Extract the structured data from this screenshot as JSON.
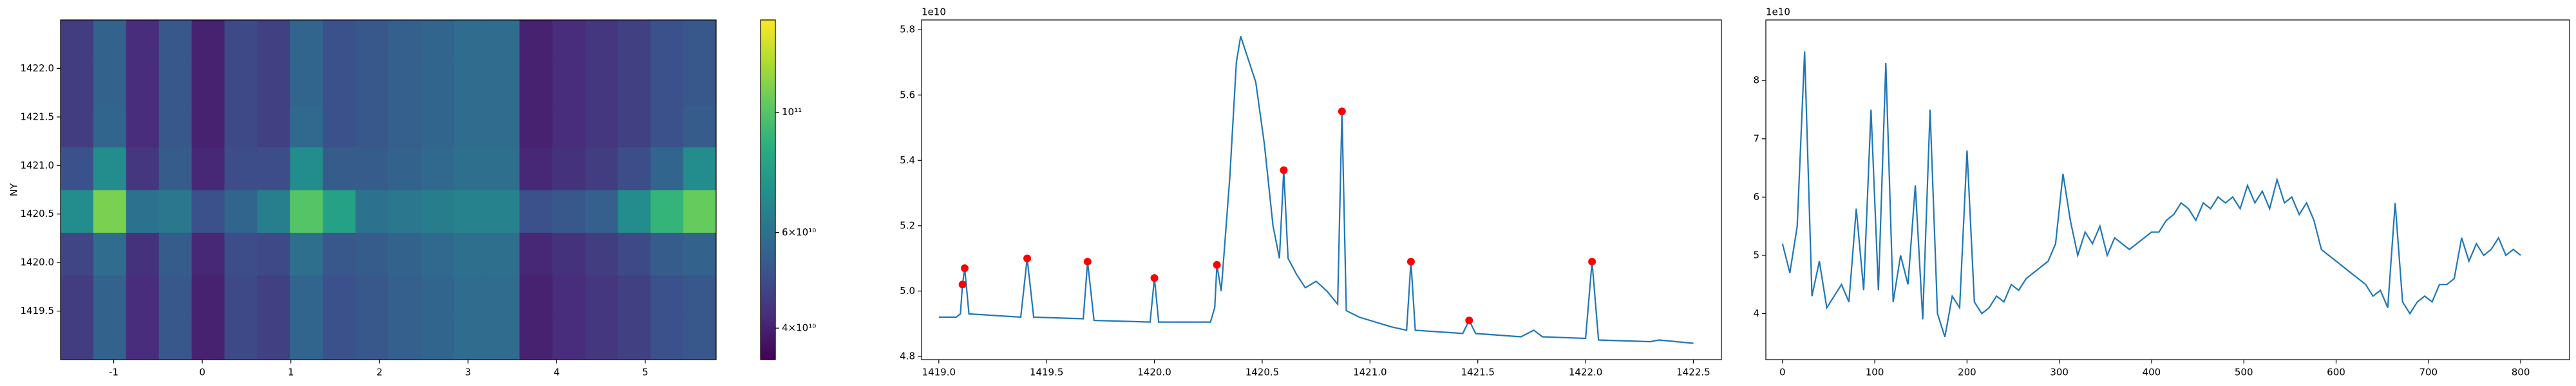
{
  "chart_data": [
    {
      "type": "heatmap",
      "ylabel": "NY",
      "colormap": "viridis",
      "log_color": true,
      "x": [
        -1.415,
        -1.045,
        -0.675,
        -0.305,
        0.065,
        0.435,
        0.805,
        1.175,
        1.545,
        1.915,
        2.285,
        2.655,
        3.025,
        3.395,
        3.765,
        4.135,
        4.505,
        4.875,
        5.245,
        5.615
      ],
      "y": [
        1419.22,
        1419.66,
        1420.09,
        1420.53,
        1420.97,
        1421.41,
        1421.84,
        1422.28
      ],
      "values": [
        [
          45000000000.0,
          55000000000.0,
          42000000000.0,
          52000000000.0,
          40000000000.0,
          48000000000.0,
          46000000000.0,
          56000000000.0,
          50000000000.0,
          52000000000.0,
          54000000000.0,
          56000000000.0,
          58000000000.0,
          58000000000.0,
          40000000000.0,
          42000000000.0,
          44000000000.0,
          46000000000.0,
          50000000000.0,
          52000000000.0
        ],
        [
          45000000000.0,
          55000000000.0,
          42000000000.0,
          52000000000.0,
          40000000000.0,
          48000000000.0,
          46000000000.0,
          56000000000.0,
          50000000000.0,
          52000000000.0,
          54000000000.0,
          56000000000.0,
          58000000000.0,
          58000000000.0,
          40000000000.0,
          42000000000.0,
          44000000000.0,
          46000000000.0,
          50000000000.0,
          52000000000.0
        ],
        [
          47000000000.0,
          58000000000.0,
          43000000000.0,
          53000000000.0,
          41000000000.0,
          49000000000.0,
          48000000000.0,
          59000000000.0,
          52000000000.0,
          53000000000.0,
          55000000000.0,
          57000000000.0,
          59000000000.0,
          59000000000.0,
          41000000000.0,
          43000000000.0,
          45000000000.0,
          48000000000.0,
          53000000000.0,
          55000000000.0
        ],
        [
          70000000000.0,
          110000000000.0,
          60000000000.0,
          62000000000.0,
          50000000000.0,
          56000000000.0,
          65000000000.0,
          100000000000.0,
          80000000000.0,
          60000000000.0,
          62000000000.0,
          64000000000.0,
          66000000000.0,
          66000000000.0,
          50000000000.0,
          52000000000.0,
          54000000000.0,
          70000000000.0,
          90000000000.0,
          105000000000.0
        ],
        [
          50000000000.0,
          70000000000.0,
          44000000000.0,
          53000000000.0,
          41000000000.0,
          49000000000.0,
          49000000000.0,
          70000000000.0,
          53000000000.0,
          53000000000.0,
          55000000000.0,
          57000000000.0,
          59000000000.0,
          59000000000.0,
          41000000000.0,
          43000000000.0,
          45000000000.0,
          49000000000.0,
          56000000000.0,
          70000000000.0
        ],
        [
          45000000000.0,
          56000000000.0,
          42000000000.0,
          52000000000.0,
          40000000000.0,
          48000000000.0,
          46000000000.0,
          57000000000.0,
          50000000000.0,
          52000000000.0,
          54000000000.0,
          56000000000.0,
          58000000000.0,
          58000000000.0,
          40000000000.0,
          42000000000.0,
          44000000000.0,
          46000000000.0,
          50000000000.0,
          53000000000.0
        ],
        [
          45000000000.0,
          55000000000.0,
          42000000000.0,
          52000000000.0,
          40000000000.0,
          48000000000.0,
          46000000000.0,
          56000000000.0,
          50000000000.0,
          52000000000.0,
          54000000000.0,
          56000000000.0,
          58000000000.0,
          58000000000.0,
          40000000000.0,
          42000000000.0,
          44000000000.0,
          46000000000.0,
          50000000000.0,
          52000000000.0
        ],
        [
          45000000000.0,
          55000000000.0,
          42000000000.0,
          52000000000.0,
          40000000000.0,
          48000000000.0,
          46000000000.0,
          56000000000.0,
          50000000000.0,
          52000000000.0,
          54000000000.0,
          56000000000.0,
          58000000000.0,
          58000000000.0,
          40000000000.0,
          42000000000.0,
          44000000000.0,
          46000000000.0,
          50000000000.0,
          52000000000.0
        ]
      ],
      "xlim": [
        -1.6,
        5.8
      ],
      "xticks": [
        -1,
        0,
        1,
        2,
        3,
        4,
        5
      ],
      "ylim": [
        1419.0,
        1422.5
      ],
      "yticks": [
        1419.5,
        {
          "value": 1420,
          "label": "1420.0"
        },
        1420.5,
        {
          "value": 1421,
          "label": "1421.0"
        },
        1421.5,
        {
          "value": 1422,
          "label": "1422.0"
        }
      ],
      "clim": [
        35000000000.0,
        148000000000.0
      ],
      "cticks": [
        {
          "value": 40000000000.0,
          "label": "4×10¹⁰"
        },
        {
          "value": 60000000000.0,
          "label": "6×10¹⁰"
        },
        {
          "value": 100000000000.0,
          "label": "10¹¹"
        }
      ]
    },
    {
      "type": "line",
      "color": "#1f77b4",
      "y_offset_label": "1e10",
      "x": [
        1419.0,
        1419.08,
        1419.1,
        1419.11,
        1419.12,
        1419.14,
        1419.38,
        1419.41,
        1419.44,
        1419.67,
        1419.69,
        1419.72,
        1419.98,
        1420.0,
        1420.02,
        1420.26,
        1420.28,
        1420.29,
        1420.31,
        1420.35,
        1420.38,
        1420.4,
        1420.43,
        1420.47,
        1420.51,
        1420.55,
        1420.58,
        1420.6,
        1420.62,
        1420.66,
        1420.7,
        1420.75,
        1420.8,
        1420.85,
        1420.87,
        1420.89,
        1420.95,
        1421.1,
        1421.17,
        1421.19,
        1421.21,
        1421.43,
        1421.46,
        1421.49,
        1421.7,
        1421.76,
        1421.8,
        1422.0,
        1422.03,
        1422.06,
        1422.3,
        1422.34,
        1422.5
      ],
      "values": [
        49200000000.0,
        49200000000.0,
        49300000000.0,
        50200000000.0,
        50700000000.0,
        49300000000.0,
        49200000000.0,
        51000000000.0,
        49200000000.0,
        49150000000.0,
        50900000000.0,
        49100000000.0,
        49050000000.0,
        50400000000.0,
        49050000000.0,
        49050000000.0,
        49500000000.0,
        50800000000.0,
        50000000000.0,
        53500000000.0,
        57000000000.0,
        57800000000.0,
        57200000000.0,
        56400000000.0,
        54500000000.0,
        52000000000.0,
        51000000000.0,
        53700000000.0,
        51000000000.0,
        50500000000.0,
        50100000000.0,
        50300000000.0,
        50000000000.0,
        49600000000.0,
        55500000000.0,
        49400000000.0,
        49200000000.0,
        48900000000.0,
        48800000000.0,
        50900000000.0,
        48800000000.0,
        48700000000.0,
        49100000000.0,
        48700000000.0,
        48600000000.0,
        48800000000.0,
        48600000000.0,
        48550000000.0,
        50900000000.0,
        48500000000.0,
        48450000000.0,
        48500000000.0,
        48400000000.0
      ],
      "markers": {
        "color": "#ff0000",
        "x": [
          1419.11,
          1419.12,
          1419.41,
          1419.69,
          1420.0,
          1420.29,
          1420.6,
          1420.87,
          1421.19,
          1421.46,
          1422.03
        ],
        "values": [
          50200000000.0,
          50700000000.0,
          51000000000.0,
          50900000000.0,
          50400000000.0,
          50800000000.0,
          53700000000.0,
          55500000000.0,
          50900000000.0,
          49100000000.0,
          50900000000.0
        ]
      },
      "xlim": [
        1418.92,
        1422.63
      ],
      "xticks": [
        {
          "value": 1419,
          "label": "1419.0"
        },
        1419.5,
        {
          "value": 1420,
          "label": "1420.0"
        },
        1420.5,
        {
          "value": 1421,
          "label": "1421.0"
        },
        1421.5,
        {
          "value": 1422,
          "label": "1422.0"
        },
        1422.5
      ],
      "ylim": [
        47900000000.0,
        58300000000.0
      ],
      "yticks": [
        {
          "value": 48000000000.0,
          "label": "4.8"
        },
        {
          "value": 50000000000.0,
          "label": "5.0"
        },
        {
          "value": 52000000000.0,
          "label": "5.2"
        },
        {
          "value": 54000000000.0,
          "label": "5.4"
        },
        {
          "value": 56000000000.0,
          "label": "5.6"
        },
        {
          "value": 58000000000.0,
          "label": "5.8"
        }
      ]
    },
    {
      "type": "line",
      "color": "#1f77b4",
      "y_offset_label": "1e10",
      "x": [
        0,
        8,
        16,
        24,
        32,
        40,
        48,
        56,
        64,
        72,
        80,
        88,
        96,
        104,
        112,
        120,
        128,
        136,
        144,
        152,
        160,
        168,
        176,
        184,
        192,
        200,
        208,
        216,
        224,
        232,
        240,
        248,
        256,
        264,
        272,
        280,
        288,
        296,
        304,
        312,
        320,
        328,
        336,
        344,
        352,
        360,
        368,
        376,
        384,
        392,
        400,
        408,
        416,
        424,
        432,
        440,
        448,
        456,
        464,
        472,
        480,
        488,
        496,
        504,
        512,
        520,
        528,
        536,
        544,
        552,
        560,
        568,
        576,
        584,
        592,
        600,
        608,
        616,
        624,
        632,
        640,
        648,
        656,
        664,
        672,
        680,
        688,
        696,
        704,
        712,
        720,
        728,
        736,
        744,
        752,
        760,
        768,
        776,
        784,
        792,
        800
      ],
      "values": [
        52000000000.0,
        47000000000.0,
        55000000000.0,
        85000000000.0,
        43000000000.0,
        49000000000.0,
        41000000000.0,
        43000000000.0,
        45000000000.0,
        42000000000.0,
        58000000000.0,
        44000000000.0,
        75000000000.0,
        44000000000.0,
        83000000000.0,
        42000000000.0,
        50000000000.0,
        45000000000.0,
        62000000000.0,
        39000000000.0,
        75000000000.0,
        40000000000.0,
        36000000000.0,
        43000000000.0,
        41000000000.0,
        68000000000.0,
        42000000000.0,
        40000000000.0,
        41000000000.0,
        43000000000.0,
        42000000000.0,
        45000000000.0,
        44000000000.0,
        46000000000.0,
        47000000000.0,
        48000000000.0,
        49000000000.0,
        52000000000.0,
        64000000000.0,
        56000000000.0,
        50000000000.0,
        54000000000.0,
        52000000000.0,
        55000000000.0,
        50000000000.0,
        53000000000.0,
        52000000000.0,
        51000000000.0,
        52000000000.0,
        53000000000.0,
        54000000000.0,
        54000000000.0,
        56000000000.0,
        57000000000.0,
        59000000000.0,
        58000000000.0,
        56000000000.0,
        59000000000.0,
        58000000000.0,
        60000000000.0,
        59000000000.0,
        60000000000.0,
        58000000000.0,
        62000000000.0,
        59000000000.0,
        61000000000.0,
        58000000000.0,
        63000000000.0,
        59000000000.0,
        60000000000.0,
        57000000000.0,
        59000000000.0,
        56000000000.0,
        51000000000.0,
        50000000000.0,
        49000000000.0,
        48000000000.0,
        47000000000.0,
        46000000000.0,
        45000000000.0,
        43000000000.0,
        44000000000.0,
        41000000000.0,
        59000000000.0,
        42000000000.0,
        40000000000.0,
        42000000000.0,
        43000000000.0,
        42000000000.0,
        45000000000.0,
        45000000000.0,
        46000000000.0,
        53000000000.0,
        49000000000.0,
        52000000000.0,
        50000000000.0,
        51000000000.0,
        53000000000.0,
        50000000000.0,
        51000000000.0,
        50000000000.0
      ],
      "xlim": [
        -18,
        853
      ],
      "xticks": [
        0,
        100,
        200,
        300,
        400,
        500,
        600,
        700,
        800
      ],
      "ylim": [
        32100000000.0,
        90400000000.0
      ],
      "yticks": [
        {
          "value": 40000000000.0,
          "label": "4"
        },
        {
          "value": 50000000000.0,
          "label": "5"
        },
        {
          "value": 60000000000.0,
          "label": "6"
        },
        {
          "value": 70000000000.0,
          "label": "7"
        },
        {
          "value": 80000000000.0,
          "label": "8"
        }
      ]
    }
  ]
}
